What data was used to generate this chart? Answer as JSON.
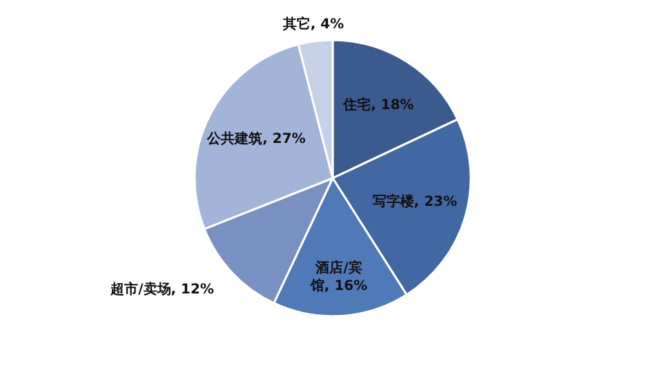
{
  "chart_data": {
    "type": "pie",
    "categories": [
      "住宅",
      "写字楼",
      "酒店/宾馆",
      "超市/卖场",
      "公共建筑",
      "其它"
    ],
    "values": [
      18,
      23,
      16,
      12,
      27,
      4
    ],
    "value_labels": [
      "18%",
      "23%",
      "16%",
      "12%",
      "27%",
      "4%"
    ],
    "colors": [
      "#3b5a8e",
      "#4268a3",
      "#5079b8",
      "#7891c2",
      "#a2b4d8",
      "#c6d1e8"
    ]
  }
}
